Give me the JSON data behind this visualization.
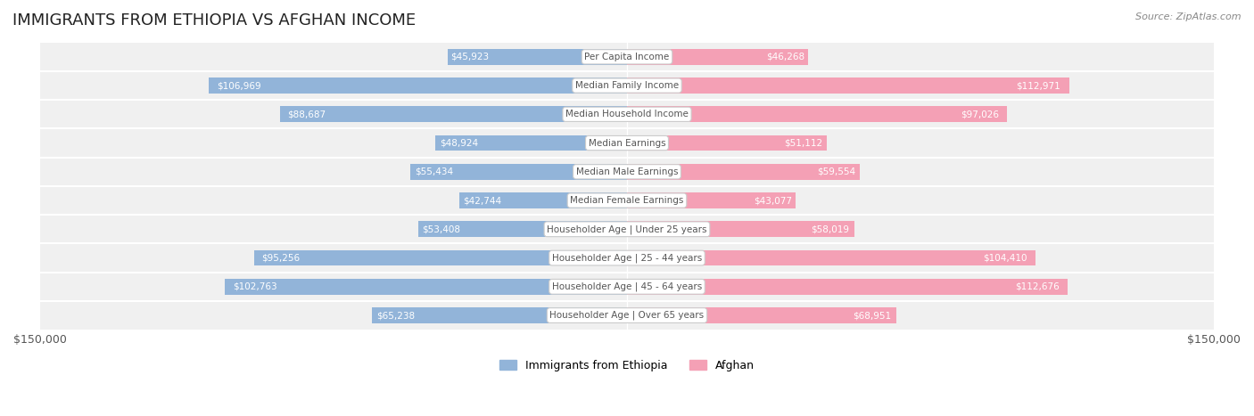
{
  "title": "IMMIGRANTS FROM ETHIOPIA VS AFGHAN INCOME",
  "source": "Source: ZipAtlas.com",
  "categories": [
    "Per Capita Income",
    "Median Family Income",
    "Median Household Income",
    "Median Earnings",
    "Median Male Earnings",
    "Median Female Earnings",
    "Householder Age | Under 25 years",
    "Householder Age | 25 - 44 years",
    "Householder Age | 45 - 64 years",
    "Householder Age | Over 65 years"
  ],
  "ethiopia_values": [
    45923,
    106969,
    88687,
    48924,
    55434,
    42744,
    53408,
    95256,
    102763,
    65238
  ],
  "afghan_values": [
    46268,
    112971,
    97026,
    51112,
    59554,
    43077,
    58019,
    104410,
    112676,
    68951
  ],
  "ethiopia_labels": [
    "$45,923",
    "$106,969",
    "$88,687",
    "$48,924",
    "$55,434",
    "$42,744",
    "$53,408",
    "$95,256",
    "$102,763",
    "$65,238"
  ],
  "afghan_labels": [
    "$46,268",
    "$112,971",
    "$97,026",
    "$51,112",
    "$59,554",
    "$43,077",
    "$58,019",
    "$104,410",
    "$112,676",
    "$68,951"
  ],
  "max_value": 150000,
  "ethiopia_color": "#92b4d9",
  "afghan_color": "#f4a0b5",
  "ethiopia_label_color_normal": "#555555",
  "ethiopia_label_color_inbar": "#ffffff",
  "afghan_label_color_normal": "#555555",
  "afghan_label_color_inbar": "#ffffff",
  "bar_height": 0.55,
  "background_color": "#ffffff",
  "row_bg_color": "#f0f0f0",
  "category_box_color": "#ffffff",
  "category_text_color": "#555555",
  "legend_ethiopia": "Immigrants from Ethiopia",
  "legend_afghan": "Afghan",
  "inbar_threshold": 30000
}
